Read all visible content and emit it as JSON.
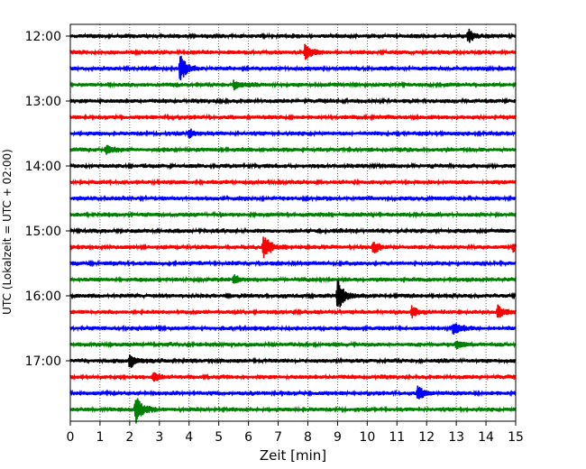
{
  "chart_data": {
    "type": "line",
    "title": "",
    "xlabel": "Zeit  [min]",
    "ylabel": "UTC (Lokalzeit = UTC + 02:00)",
    "xlim": [
      0,
      15
    ],
    "x_ticks": [
      "0",
      "1",
      "2",
      "3",
      "4",
      "5",
      "6",
      "7",
      "8",
      "9",
      "10",
      "11",
      "12",
      "13",
      "14",
      "15"
    ],
    "y_ticks": [
      "12:00",
      "13:00",
      "14:00",
      "15:00",
      "16:00",
      "17:00"
    ],
    "grid": "vertical dotted lines at each minute",
    "trace_interval_minutes": 15,
    "trace_start": "12:00",
    "trace_count": 24,
    "trace_colors": [
      "#000000",
      "#ff0000",
      "#0000ff",
      "#008000"
    ],
    "noise_amplitude": 0.25,
    "events": [
      {
        "row": 0,
        "time": 13.4,
        "amp": 0.9
      },
      {
        "row": 1,
        "time": 7.9,
        "amp": 1.0
      },
      {
        "row": 2,
        "time": 3.7,
        "amp": 1.8
      },
      {
        "row": 3,
        "time": 5.5,
        "amp": 0.7
      },
      {
        "row": 6,
        "time": 4.0,
        "amp": 0.6
      },
      {
        "row": 7,
        "time": 1.2,
        "amp": 0.6
      },
      {
        "row": 13,
        "time": 6.5,
        "amp": 2.0
      },
      {
        "row": 13,
        "time": 10.2,
        "amp": 0.8
      },
      {
        "row": 13,
        "time": 14.9,
        "amp": 0.6
      },
      {
        "row": 15,
        "time": 5.5,
        "amp": 0.7
      },
      {
        "row": 16,
        "time": 9.0,
        "amp": 2.3
      },
      {
        "row": 17,
        "time": 11.5,
        "amp": 0.8
      },
      {
        "row": 17,
        "time": 14.4,
        "amp": 1.0
      },
      {
        "row": 18,
        "time": 12.9,
        "amp": 0.8
      },
      {
        "row": 19,
        "time": 13.0,
        "amp": 0.6
      },
      {
        "row": 20,
        "time": 2.0,
        "amp": 1.1
      },
      {
        "row": 21,
        "time": 2.8,
        "amp": 0.8
      },
      {
        "row": 22,
        "time": 11.7,
        "amp": 0.9
      },
      {
        "row": 23,
        "time": 2.2,
        "amp": 2.0
      }
    ]
  }
}
